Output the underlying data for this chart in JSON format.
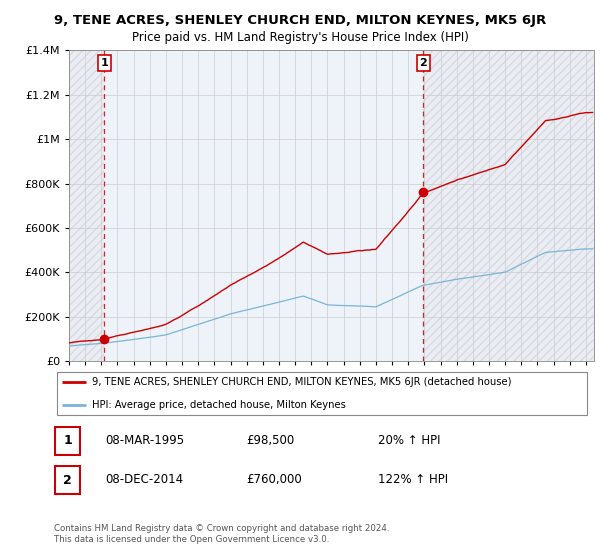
{
  "title": "9, TENE ACRES, SHENLEY CHURCH END, MILTON KEYNES, MK5 6JR",
  "subtitle": "Price paid vs. HM Land Registry's House Price Index (HPI)",
  "ylim": [
    0,
    1400000
  ],
  "yticks": [
    0,
    200000,
    400000,
    600000,
    800000,
    1000000,
    1200000,
    1400000
  ],
  "ytick_labels": [
    "£0",
    "£200K",
    "£400K",
    "£600K",
    "£800K",
    "£1M",
    "£1.2M",
    "£1.4M"
  ],
  "xmin": 1993.0,
  "xmax": 2025.5,
  "sale1_date": 1995.19,
  "sale1_price": 98500,
  "sale1_label": "1",
  "sale2_date": 2014.93,
  "sale2_price": 760000,
  "sale2_label": "2",
  "hpi_color": "#7ab4d8",
  "sale_color": "#cc0000",
  "dashed_color": "#cc0000",
  "legend_sale_label": "9, TENE ACRES, SHENLEY CHURCH END, MILTON KEYNES, MK5 6JR (detached house)",
  "legend_hpi_label": "HPI: Average price, detached house, Milton Keynes",
  "table_rows": [
    {
      "num": "1",
      "date": "08-MAR-1995",
      "price": "£98,500",
      "hpi": "20% ↑ HPI"
    },
    {
      "num": "2",
      "date": "08-DEC-2014",
      "price": "£760,000",
      "hpi": "122% ↑ HPI"
    }
  ],
  "footnote": "Contains HM Land Registry data © Crown copyright and database right 2024.\nThis data is licensed under the Open Government Licence v3.0."
}
